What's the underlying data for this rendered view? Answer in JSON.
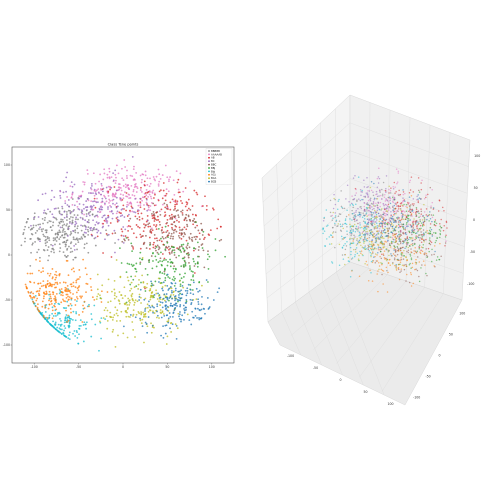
{
  "chart_data": [
    {
      "type": "scatter",
      "projection": "2d",
      "title": "Class Tsne points",
      "xlabel": "",
      "ylabel": "",
      "xlim": [
        -125,
        125
      ],
      "ylim": [
        -120,
        120
      ],
      "xticks": [
        "-100",
        "-50",
        "0",
        "50",
        "100"
      ],
      "yticks": [
        "100",
        "50",
        "0",
        "-50",
        "-100"
      ],
      "grid": false,
      "legend_position": "top-right",
      "series": [
        {
          "name": "BBBBB",
          "color": "#7f7f7f",
          "center": [
            -70,
            25
          ],
          "spread": [
            22,
            16
          ],
          "count": 260
        },
        {
          "name": "AAAAAB",
          "color": "#e377c2",
          "center": [
            5,
            70
          ],
          "spread": [
            30,
            14
          ],
          "count": 260
        },
        {
          "name": "AB",
          "color": "#d62728",
          "center": [
            40,
            40
          ],
          "spread": [
            30,
            20
          ],
          "count": 230
        },
        {
          "name": "BC",
          "color": "#9467bd",
          "center": [
            -35,
            50
          ],
          "spread": [
            28,
            18
          ],
          "count": 200
        },
        {
          "name": "BBC",
          "color": "#8c564b",
          "center": [
            60,
            20
          ],
          "spread": [
            22,
            18
          ],
          "count": 170
        },
        {
          "name": "BBj",
          "color": "#2ca02c",
          "center": [
            55,
            -10
          ],
          "spread": [
            25,
            18
          ],
          "count": 170
        },
        {
          "name": "Bbj",
          "color": "#17becf",
          "center": [
            -75,
            -75
          ],
          "spread": [
            22,
            14
          ],
          "count": 220
        },
        {
          "name": "AGj",
          "color": "#ff7f0e",
          "center": [
            -75,
            -40
          ],
          "spread": [
            20,
            14
          ],
          "count": 230
        },
        {
          "name": "BCA",
          "color": "#bcbd22",
          "center": [
            20,
            -55
          ],
          "spread": [
            24,
            18
          ],
          "count": 220
        },
        {
          "name": "BCB",
          "color": "#1f77b4",
          "center": [
            60,
            -55
          ],
          "spread": [
            22,
            14
          ],
          "count": 190
        }
      ]
    },
    {
      "type": "scatter",
      "projection": "3d",
      "title": "",
      "grid": true,
      "xticks": [
        "-100",
        "-50",
        "0",
        "50",
        "100"
      ],
      "yticks": [
        "-100",
        "-50",
        "0",
        "50",
        "100"
      ],
      "zticks": [
        "-100",
        "-50",
        "0",
        "50",
        "100"
      ],
      "series_colors": [
        "#7f7f7f",
        "#e377c2",
        "#d62728",
        "#9467bd",
        "#8c564b",
        "#2ca02c",
        "#17becf",
        "#ff7f0e",
        "#bcbd22",
        "#1f77b4"
      ]
    }
  ]
}
